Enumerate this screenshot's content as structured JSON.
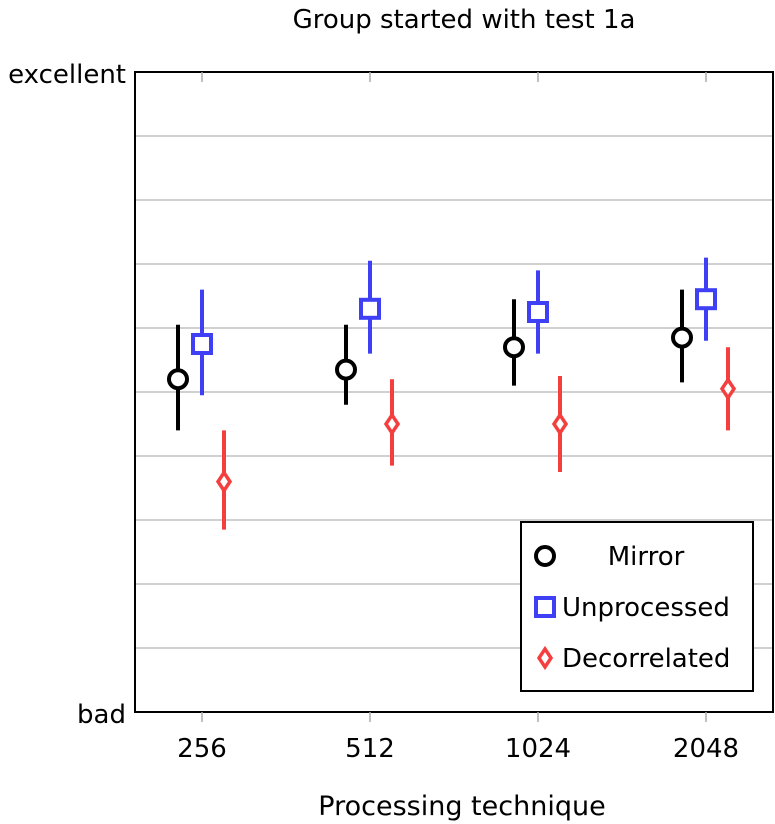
{
  "chart_data": {
    "type": "scatter",
    "title": "Group started with test 1a",
    "xlabel": "Processing technique",
    "ylabel": "",
    "categories": [
      "256",
      "512",
      "1024",
      "2048"
    ],
    "ylim": [
      0,
      10
    ],
    "ytick_labels": {
      "bottom": "bad",
      "top": "excellent"
    },
    "grid": true,
    "legend_position": "bottom-right",
    "series": [
      {
        "name": "Mirror",
        "marker": "circle",
        "color": "#000000",
        "values": [
          5.2,
          5.35,
          5.7,
          5.85
        ],
        "lower": [
          4.4,
          4.8,
          5.1,
          5.15
        ],
        "upper": [
          6.05,
          6.05,
          6.45,
          6.6
        ]
      },
      {
        "name": "Unprocessed",
        "marker": "square",
        "color": "#3f3ff5",
        "values": [
          5.75,
          6.3,
          6.25,
          6.45
        ],
        "lower": [
          4.95,
          5.6,
          5.6,
          5.8
        ],
        "upper": [
          6.6,
          7.05,
          6.9,
          7.1
        ]
      },
      {
        "name": "Decorrelated",
        "marker": "diamond",
        "color": "#f53f3f",
        "values": [
          3.6,
          4.5,
          4.5,
          5.05
        ],
        "lower": [
          2.85,
          3.85,
          3.75,
          4.4
        ],
        "upper": [
          4.4,
          5.2,
          5.25,
          5.7
        ]
      }
    ]
  }
}
